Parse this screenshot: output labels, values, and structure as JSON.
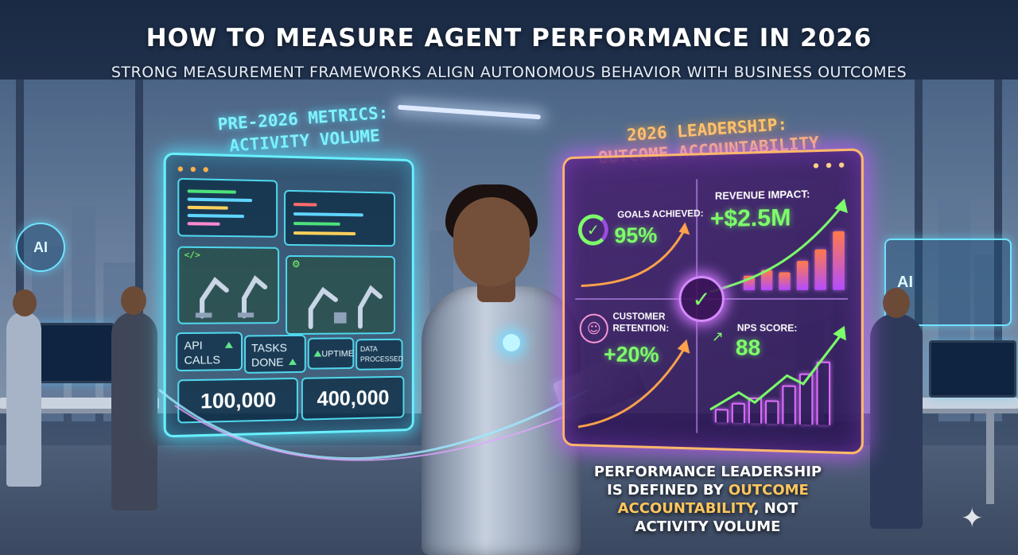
{
  "title": "HOW TO MEASURE AGENT PERFORMANCE IN 2026",
  "subtitle": "STRONG MEASUREMENT FRAMEWORKS ALIGN AUTONOMOUS BEHAVIOR WITH BUSINESS OUTCOMES",
  "left_panel": {
    "heading_line1": "PRE-2026 METRICS:",
    "heading_line2": "ACTIVITY VOLUME",
    "code_tag": "</>",
    "gear": "⚙",
    "metrics": [
      {
        "label_line1": "API",
        "label_line2": "CALLS"
      },
      {
        "label_line1": "TASKS",
        "label_line2": "DONE"
      },
      {
        "label_line1": "UPTIME",
        "label_line2": ""
      },
      {
        "label_line1": "DATA",
        "label_line2": "PROCESSED"
      }
    ],
    "values": [
      "100,000",
      "400,000"
    ]
  },
  "right_panel": {
    "heading_line1": "2026 LEADERSHIP:",
    "heading_line2": "OUTCOME ACCOUNTABILITY",
    "goals": {
      "label": "GOALS ACHIEVED:",
      "value": "95%"
    },
    "revenue": {
      "label": "REVENUE IMPACT:",
      "value": "+$2.5M",
      "bars": [
        0.25,
        0.35,
        0.3,
        0.5,
        0.7,
        1.0
      ]
    },
    "retention": {
      "label_line1": "CUSTOMER",
      "label_line2": "RETENTION:",
      "value": "+20%"
    },
    "nps": {
      "label": "NPS SCORE:",
      "value": "88",
      "bars": [
        0.2,
        0.3,
        0.4,
        0.35,
        0.6,
        0.8,
        1.0
      ]
    }
  },
  "side_screens": {
    "left_label": "AI",
    "right_label": "AI"
  },
  "caption": {
    "line1": "PERFORMANCE LEADERSHIP",
    "line2_pre": "IS DEFINED BY ",
    "line2_hl": "OUTCOME",
    "line3_hl": "ACCOUNTABILITY",
    "line3_post": ", NOT",
    "line4": "ACTIVITY VOLUME"
  },
  "colors": {
    "left_glow": "#68f0ff",
    "right_glow": "#ffb86b",
    "accent_green": "#7dff6a",
    "caption_highlight": "#ffc65c"
  },
  "icons": [
    "check-circle-icon",
    "people-icon",
    "trend-up-icon",
    "code-icon",
    "gear-icon",
    "sparkle-icon"
  ]
}
